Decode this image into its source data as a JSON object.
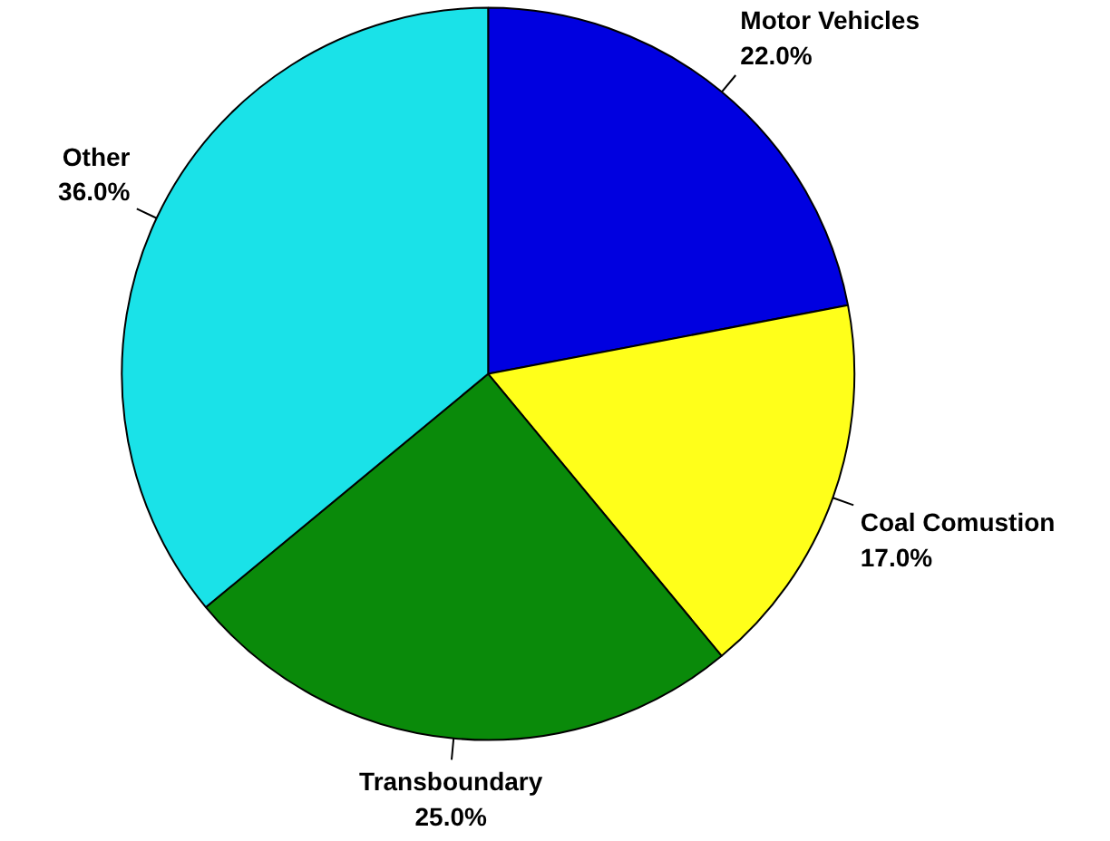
{
  "chart_data": {
    "type": "pie",
    "categories": [
      "Motor Vehicles",
      "Coal Comustion",
      "Transboundary",
      "Other"
    ],
    "values": [
      22.0,
      17.0,
      25.0,
      36.0
    ],
    "colors": [
      "#0000e0",
      "#ffff1a",
      "#0a8a0a",
      "#1ae2e8"
    ],
    "value_labels": [
      "22.0%",
      "17.0%",
      "25.0%",
      "36.0%"
    ]
  }
}
